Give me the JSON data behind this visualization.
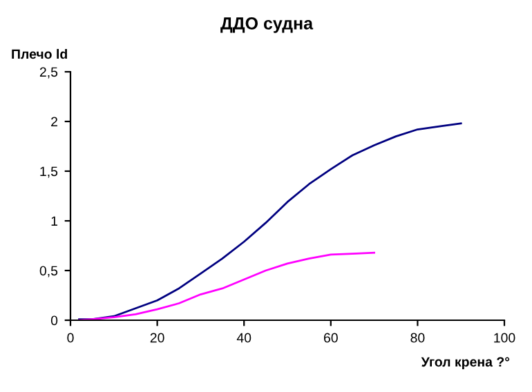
{
  "chart_data": {
    "type": "line",
    "title": "ДДО судна",
    "ylabel": "Плечо ld",
    "xlabel": "Угол крена ?°",
    "xlim": [
      0,
      100
    ],
    "xticks": [
      0,
      20,
      40,
      60,
      80,
      100
    ],
    "ylim": [
      0,
      2.5
    ],
    "yticks": [
      0,
      {
        "value": 0.5,
        "label": "0,5"
      },
      1,
      {
        "value": 1.5,
        "label": "1,5"
      },
      2,
      {
        "value": 2.5,
        "label": "2,5"
      }
    ],
    "grid": false,
    "legend": false,
    "series": [
      {
        "color": "#000080",
        "x": [
          2,
          5,
          10,
          15,
          20,
          25,
          30,
          35,
          40,
          45,
          50,
          55,
          60,
          65,
          70,
          75,
          80,
          85,
          90
        ],
        "values": [
          0.01,
          0.01,
          0.04,
          0.12,
          0.2,
          0.32,
          0.47,
          0.62,
          0.79,
          0.98,
          1.19,
          1.37,
          1.52,
          1.66,
          1.76,
          1.85,
          1.92,
          1.95,
          1.98
        ]
      },
      {
        "color": "#ff00ff",
        "x": [
          2,
          5,
          10,
          15,
          20,
          25,
          30,
          35,
          40,
          45,
          50,
          55,
          60,
          65,
          70
        ],
        "values": [
          0.0,
          0.01,
          0.03,
          0.06,
          0.11,
          0.17,
          0.26,
          0.32,
          0.41,
          0.5,
          0.57,
          0.62,
          0.66,
          0.67,
          0.68
        ]
      }
    ]
  }
}
